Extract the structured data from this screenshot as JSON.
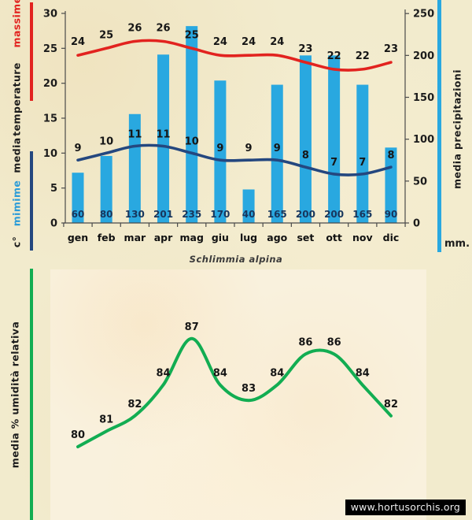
{
  "page": {
    "title": "Schlimmia alpina",
    "watermark": "www.hortusorchis.org",
    "background": "#f2ebcd",
    "panel_background": "#f9f1dd"
  },
  "top_chart": {
    "left_axis_labels": {
      "max": "massime",
      "temperature": "temperature",
      "media": "media",
      "min": "mimime",
      "unit": "c°"
    },
    "right_axis_label": "media precipitazioni",
    "right_axis_unit": "mm.",
    "colors": {
      "max_line": "#e2231f",
      "min_line": "#24477f",
      "min_label_text": "#2b9cd8",
      "bars": "#29a8e0",
      "bar_value_text": "#17365d",
      "axis": "#4a4a4a"
    }
  },
  "bottom_chart": {
    "ylabel": "media % umidità relativa",
    "color": "#12ad52"
  },
  "chart_data": [
    {
      "type": "bar",
      "title": "Schlimmia alpina",
      "categories": [
        "gen",
        "feb",
        "mar",
        "apr",
        "mag",
        "giu",
        "lug",
        "ago",
        "set",
        "ott",
        "nov",
        "dic"
      ],
      "series": [
        {
          "name": "massime",
          "type": "line",
          "axis": "left",
          "color": "#e2231f",
          "values": [
            24,
            25,
            26,
            26,
            25,
            24,
            24,
            24,
            23,
            22,
            22,
            23
          ]
        },
        {
          "name": "mimime",
          "type": "line",
          "axis": "left",
          "color": "#24477f",
          "values": [
            9,
            10,
            11,
            11,
            10,
            9,
            9,
            9,
            8,
            7,
            7,
            8
          ]
        },
        {
          "name": "media precipitazioni",
          "type": "bar",
          "axis": "right",
          "color": "#29a8e0",
          "values": [
            60,
            80,
            130,
            201,
            235,
            170,
            40,
            165,
            200,
            200,
            165,
            90
          ]
        }
      ],
      "left_axis": {
        "label": "media temperature",
        "unit": "c°",
        "ticks": [
          0,
          5,
          10,
          15,
          20,
          25,
          30
        ],
        "range": [
          0,
          30
        ]
      },
      "right_axis": {
        "label": "media precipitazioni",
        "unit": "mm.",
        "ticks": [
          0,
          50,
          100,
          150,
          200,
          250
        ],
        "range": [
          0,
          250
        ]
      },
      "grid": false,
      "legend_position": "left-and-right-rotated"
    },
    {
      "type": "line",
      "name": "media % umidità relativa",
      "values": [
        80,
        81,
        82,
        84,
        87,
        84,
        83,
        84,
        86,
        86,
        84,
        82
      ],
      "ylabel": "media % umidità relativa",
      "color": "#12ad52",
      "grid": false,
      "axes_hidden": true
    }
  ]
}
